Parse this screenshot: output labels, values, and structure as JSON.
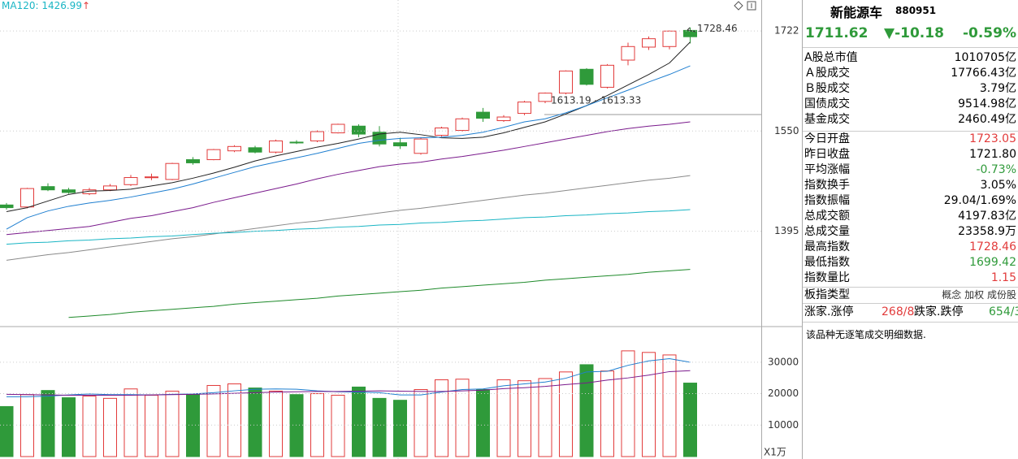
{
  "price_chart": {
    "type": "candlestick",
    "log_scale": true,
    "ylim": [
      1264,
      1779
    ],
    "yticks": [
      1722,
      1550,
      1395
    ],
    "up_color": "#e23b3b",
    "down_color": "#2f9a3a",
    "legend": {
      "label": "MA120: 1426.99",
      "arrow": "↑",
      "color": "#19b5c4"
    },
    "open": [
      1434,
      1431,
      1462,
      1457,
      1451,
      1457,
      1465,
      1476,
      1473,
      1504,
      1504,
      1518,
      1523,
      1516,
      1532,
      1534,
      1547,
      1558,
      1548,
      1531,
      1514,
      1543,
      1551,
      1581,
      1567,
      1579,
      1599,
      1613,
      1654,
      1623,
      1670,
      1693,
      1694,
      1723.05
    ],
    "close": [
      1430,
      1459,
      1457,
      1453,
      1457,
      1463,
      1476,
      1477,
      1498,
      1499,
      1520,
      1525,
      1516,
      1534,
      1531,
      1549,
      1561,
      1545,
      1529,
      1526,
      1537,
      1555,
      1570,
      1571,
      1573,
      1598,
      1613,
      1651,
      1628,
      1661,
      1694,
      1708,
      1721.8,
      1711.62
    ],
    "high": [
      1437,
      1460,
      1467,
      1460,
      1460,
      1466,
      1480,
      1482,
      1499,
      1508,
      1521,
      1527,
      1526,
      1536,
      1535,
      1551,
      1562,
      1561,
      1558,
      1539,
      1540,
      1557,
      1572,
      1588,
      1576,
      1600,
      1614,
      1652,
      1656,
      1663,
      1701,
      1712,
      1723,
      1728.46
    ],
    "low": [
      1427,
      1429,
      1455,
      1451,
      1449,
      1455,
      1463,
      1472,
      1472,
      1496,
      1503,
      1516,
      1514,
      1514,
      1529,
      1532,
      1546,
      1540,
      1525,
      1521,
      1512,
      1541,
      1549,
      1565,
      1565,
      1576,
      1596,
      1611,
      1626,
      1621,
      1661,
      1688,
      1689,
      1699.42
    ],
    "moving_averages": [
      {
        "color": "#222222",
        "values": [
          1424,
          1430,
          1440,
          1450,
          1455,
          1456,
          1458,
          1463,
          1468,
          1475,
          1483,
          1492,
          1502,
          1510,
          1517,
          1524,
          1530,
          1537,
          1545,
          1548,
          1544,
          1539,
          1538,
          1540,
          1547,
          1556,
          1565,
          1578,
          1592,
          1609,
          1627,
          1645,
          1665,
          1702
        ]
      },
      {
        "color": "#1f7fd0",
        "values": [
          1398,
          1415,
          1425,
          1432,
          1437,
          1441,
          1446,
          1452,
          1458,
          1466,
          1475,
          1484,
          1493,
          1500,
          1507,
          1514,
          1522,
          1530,
          1535,
          1538,
          1539,
          1540,
          1543,
          1548,
          1556,
          1565,
          1570,
          1580,
          1592,
          1605,
          1618,
          1632,
          1645,
          1660
        ]
      },
      {
        "color": "#7a1a8c",
        "values": [
          1390,
          1393,
          1396,
          1399,
          1402,
          1408,
          1414,
          1418,
          1424,
          1430,
          1438,
          1445,
          1452,
          1459,
          1466,
          1474,
          1481,
          1487,
          1493,
          1497,
          1500,
          1505,
          1509,
          1514,
          1519,
          1525,
          1531,
          1537,
          1543,
          1549,
          1554,
          1558,
          1561,
          1565
        ]
      },
      {
        "color": "#8a8a8a",
        "values": [
          1353,
          1357,
          1361,
          1364,
          1368,
          1372,
          1376,
          1380,
          1384,
          1387,
          1391,
          1395,
          1399,
          1403,
          1407,
          1410,
          1414,
          1418,
          1422,
          1426,
          1429,
          1433,
          1437,
          1441,
          1445,
          1449,
          1452,
          1456,
          1460,
          1464,
          1468,
          1472,
          1475,
          1479
        ]
      },
      {
        "color": "#19b5c4",
        "values": [
          1376,
          1378,
          1379,
          1381,
          1382,
          1384,
          1385,
          1387,
          1388,
          1390,
          1392,
          1393,
          1395,
          1396,
          1398,
          1399,
          1401,
          1402,
          1404,
          1405,
          1407,
          1408,
          1410,
          1411,
          1413,
          1415,
          1416,
          1418,
          1419,
          1421,
          1422,
          1424,
          1425,
          1426.99
        ]
      },
      {
        "color": "#1e8a2a",
        "values": [
          null,
          null,
          null,
          1274,
          1276,
          1278,
          1281,
          1283,
          1285,
          1287,
          1289,
          1292,
          1294,
          1296,
          1298,
          1300,
          1303,
          1305,
          1307,
          1309,
          1311,
          1314,
          1316,
          1318,
          1320,
          1322,
          1325,
          1327,
          1329,
          1331,
          1333,
          1336,
          1338,
          1340
        ]
      }
    ],
    "annotations": {
      "high_label": "1728.46",
      "gap_label": "1613.19 - 1613.33"
    }
  },
  "volume_chart": {
    "type": "bar",
    "ylim": [
      0,
      40800
    ],
    "yticks": [
      30000,
      20000,
      10000
    ],
    "unit_label": "X1万",
    "values": [
      15900,
      19700,
      21000,
      18700,
      19200,
      18500,
      21500,
      19500,
      20800,
      19700,
      22600,
      23100,
      21800,
      20800,
      19700,
      20000,
      19500,
      22100,
      18500,
      17900,
      21300,
      24400,
      24600,
      21300,
      24400,
      24100,
      24800,
      26900,
      29200,
      27200,
      33600,
      33100,
      32300,
      23358.9
    ],
    "moving_averages": [
      {
        "color": "#1f7fd0",
        "values": [
          19000,
          19000,
          19200,
          19600,
          19900,
          19700,
          19700,
          19600,
          19800,
          19900,
          20300,
          20900,
          21400,
          21500,
          21400,
          20900,
          20600,
          20500,
          20300,
          19600,
          19600,
          20500,
          21300,
          21500,
          22500,
          23100,
          23700,
          24900,
          26900,
          27100,
          29000,
          30400,
          31100,
          30000
        ]
      },
      {
        "color": "#7a1a8c",
        "values": [
          19800,
          19700,
          19600,
          19500,
          19500,
          19500,
          19500,
          19600,
          19700,
          19800,
          19900,
          20100,
          20300,
          20500,
          20600,
          20700,
          20700,
          20800,
          20900,
          20800,
          20700,
          20700,
          20900,
          21100,
          21600,
          21900,
          22300,
          22900,
          23400,
          24300,
          25000,
          25900,
          27000,
          27300
        ]
      }
    ]
  },
  "quote_panel": {
    "name": "新能源车",
    "code": "880951",
    "price": "1711.62",
    "change": "▼-10.18",
    "change_pct": "-0.59%",
    "quote_color": "#2f9a3a",
    "rows": [
      {
        "label": "A股总市值",
        "value": "1010705亿",
        "color": "#000000"
      },
      {
        "label": "Ａ股成交",
        "value": "17766.43亿",
        "color": "#000000"
      },
      {
        "label": "Ｂ股成交",
        "value": "3.79亿",
        "color": "#000000"
      },
      {
        "label": "国债成交",
        "value": "9514.98亿",
        "color": "#000000"
      },
      {
        "label": "基金成交",
        "value": "2460.49亿",
        "color": "#000000"
      },
      {
        "label": "今日开盘",
        "value": "1723.05",
        "color": "#e23b3b"
      },
      {
        "label": "昨日收盘",
        "value": "1721.80",
        "color": "#000000"
      },
      {
        "label": "平均涨幅",
        "value": "-0.73%",
        "color": "#2f9a3a"
      },
      {
        "label": "指数换手",
        "value": "3.05%",
        "color": "#000000"
      },
      {
        "label": "指数振幅",
        "value": "29.04/1.69%",
        "color": "#000000"
      },
      {
        "label": "总成交额",
        "value": "4197.83亿",
        "color": "#000000"
      },
      {
        "label": "总成交量",
        "value": "23358.9万",
        "color": "#000000"
      },
      {
        "label": "最高指数",
        "value": "1728.46",
        "color": "#e23b3b"
      },
      {
        "label": "最低指数",
        "value": "1699.42",
        "color": "#2f9a3a"
      },
      {
        "label": "指数量比",
        "value": "1.15",
        "color": "#e23b3b"
      }
    ],
    "sector_row": {
      "label": "板指类型",
      "tags": [
        "概念",
        "加权",
        "成份股"
      ]
    },
    "breadth_row": {
      "up_label": "涨家.涨停",
      "up_value": "268/8",
      "down_label": "跌家.跌停",
      "down_value": "654/3"
    },
    "note": "该品种无逐笔成交明细数据."
  }
}
